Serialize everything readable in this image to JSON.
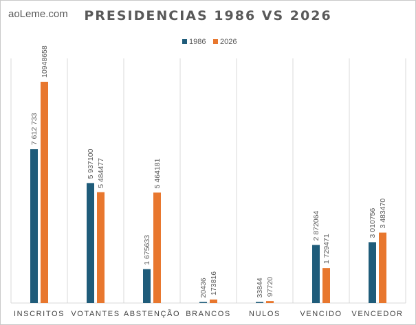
{
  "brand": "aoLeme.com",
  "chart_data": {
    "type": "bar",
    "title": "PRESIDENCIAS 1986 VS 2026",
    "xlabel": "",
    "ylabel": "",
    "ylim": [
      0,
      11000000
    ],
    "grid": false,
    "legend_position": "top",
    "categories": [
      "INSCRITOS",
      "VOTANTES",
      "ABSTENÇÃO",
      "BRANCOS",
      "NULOS",
      "VENCIDO",
      "VENCEDOR"
    ],
    "series": [
      {
        "name": "1986",
        "color": "#1f5c7a",
        "values": [
          7612733,
          5937100,
          1675633,
          20436,
          33844,
          2872064,
          3010756
        ],
        "labels": [
          "7 612 733",
          "5 937100",
          "1 675633",
          "20436",
          "33844",
          "2 872064",
          "3 010756"
        ]
      },
      {
        "name": "2026",
        "color": "#e8772e",
        "values": [
          10948658,
          5484477,
          5464181,
          173816,
          97720,
          1729471,
          3483470
        ],
        "labels": [
          "10948658",
          "5 484477",
          "5 464181",
          "173816",
          "97720",
          "1 729471",
          "3 483470"
        ]
      }
    ]
  }
}
